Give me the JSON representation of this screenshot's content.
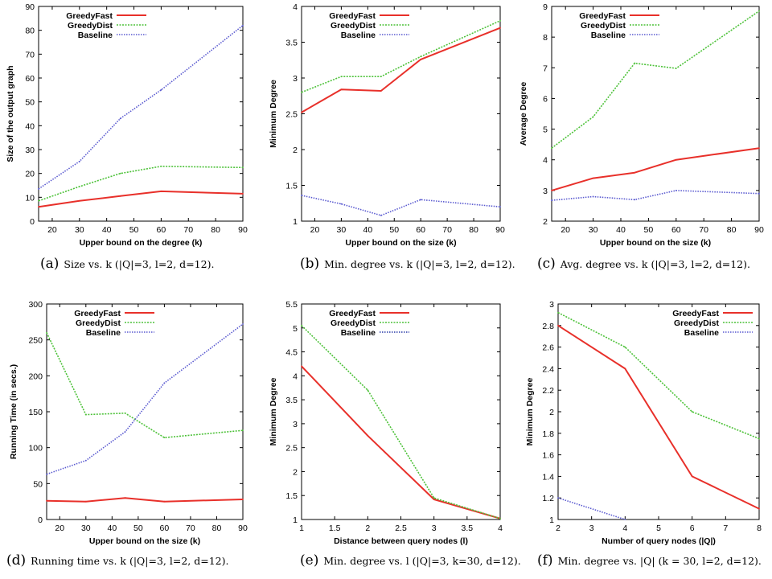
{
  "chart_data": [
    {
      "type": "line",
      "ylabel": "Size of the output graph",
      "xlabel": "Upper bound on the degree (k)",
      "xlim": [
        15,
        90
      ],
      "ylim": [
        0,
        90
      ],
      "xticks": [
        20,
        30,
        40,
        50,
        60,
        70,
        80,
        90
      ],
      "yticks": [
        0,
        10,
        20,
        30,
        40,
        50,
        60,
        70,
        80,
        90
      ],
      "legend": "top-left",
      "caption_label": "(a)",
      "caption": "Size vs. k (|Q|=3, l=2, d=12).",
      "series": [
        {
          "name": "GreedyFast",
          "color": "#e8302a",
          "x": [
            15,
            30,
            45,
            60,
            90
          ],
          "y": [
            6,
            8.5,
            10.5,
            12.5,
            11.5
          ]
        },
        {
          "name": "GreedyDist",
          "color": "#4ec23a",
          "x": [
            15,
            30,
            45,
            60,
            90
          ],
          "y": [
            8.5,
            14.5,
            20,
            23,
            22.5
          ]
        },
        {
          "name": "Baseline",
          "color": "#5a5ad0",
          "x": [
            15,
            30,
            45,
            60,
            90
          ],
          "y": [
            13.5,
            25,
            43,
            55,
            82
          ]
        }
      ]
    },
    {
      "type": "line",
      "ylabel": "Minimum Degree",
      "xlabel": "Upper bound on the size (k)",
      "xlim": [
        15,
        90
      ],
      "ylim": [
        1,
        4
      ],
      "xticks": [
        20,
        30,
        40,
        50,
        60,
        70,
        80,
        90
      ],
      "yticks": [
        1,
        1.5,
        2,
        2.5,
        3,
        3.5,
        4
      ],
      "legend": "top-left",
      "caption_label": "(b)",
      "caption": "Min. degree vs. k (|Q|=3, l=2, d=12).",
      "series": [
        {
          "name": "GreedyFast",
          "color": "#e8302a",
          "x": [
            15,
            30,
            45,
            60,
            90
          ],
          "y": [
            2.52,
            2.84,
            2.82,
            3.26,
            3.7
          ]
        },
        {
          "name": "GreedyDist",
          "color": "#4ec23a",
          "x": [
            15,
            30,
            45,
            60,
            90
          ],
          "y": [
            2.8,
            3.02,
            3.02,
            3.3,
            3.8
          ]
        },
        {
          "name": "Baseline",
          "color": "#5a5ad0",
          "x": [
            15,
            30,
            45,
            60,
            90
          ],
          "y": [
            1.36,
            1.24,
            1.08,
            1.3,
            1.2
          ]
        }
      ]
    },
    {
      "type": "line",
      "ylabel": "Average Degree",
      "xlabel": "Upper bound on the size (k)",
      "xlim": [
        15,
        90
      ],
      "ylim": [
        2,
        9
      ],
      "xticks": [
        20,
        30,
        40,
        50,
        60,
        70,
        80,
        90
      ],
      "yticks": [
        2,
        3,
        4,
        5,
        6,
        7,
        8,
        9
      ],
      "legend": "top-left",
      "caption_label": "(c)",
      "caption": "Avg. degree vs. k (|Q|=3, l=2, d=12).",
      "series": [
        {
          "name": "GreedyFast",
          "color": "#e8302a",
          "x": [
            15,
            30,
            45,
            60,
            90
          ],
          "y": [
            3.0,
            3.4,
            3.58,
            4.0,
            4.38
          ]
        },
        {
          "name": "GreedyDist",
          "color": "#4ec23a",
          "x": [
            15,
            30,
            45,
            60,
            90
          ],
          "y": [
            4.38,
            5.4,
            7.15,
            6.98,
            8.85
          ]
        },
        {
          "name": "Baseline",
          "color": "#5a5ad0",
          "x": [
            15,
            30,
            45,
            60,
            90
          ],
          "y": [
            2.68,
            2.8,
            2.7,
            3.0,
            2.9
          ]
        }
      ]
    },
    {
      "type": "line",
      "ylabel": "Running Time (in secs.)",
      "xlabel": "Upper bound on the size (k)",
      "xlim": [
        15,
        90
      ],
      "ylim": [
        0,
        300
      ],
      "xticks": [
        20,
        30,
        40,
        50,
        60,
        70,
        80,
        90
      ],
      "yticks": [
        0,
        50,
        100,
        150,
        200,
        250,
        300
      ],
      "legend": "top-left",
      "caption_label": "(d)",
      "caption": "Running time vs. k (|Q|=3, l=2, d=12).",
      "series": [
        {
          "name": "GreedyFast",
          "color": "#e8302a",
          "x": [
            15,
            30,
            45,
            60,
            90
          ],
          "y": [
            26,
            25,
            30,
            25,
            28
          ]
        },
        {
          "name": "GreedyDist",
          "color": "#4ec23a",
          "x": [
            15,
            30,
            45,
            60,
            90
          ],
          "y": [
            260,
            146,
            148,
            114,
            124
          ]
        },
        {
          "name": "Baseline",
          "color": "#5a5ad0",
          "x": [
            15,
            30,
            45,
            60,
            90
          ],
          "y": [
            63,
            82,
            122,
            190,
            272
          ]
        }
      ]
    },
    {
      "type": "line",
      "ylabel": "Minimum Degree",
      "xlabel": "Distance between query nodes (l)",
      "xlim": [
        1,
        4
      ],
      "ylim": [
        1,
        5.5
      ],
      "xticks": [
        1,
        1.5,
        2,
        2.5,
        3,
        3.5,
        4
      ],
      "yticks": [
        1,
        1.5,
        2,
        2.5,
        3,
        3.5,
        4,
        4.5,
        5,
        5.5
      ],
      "legend": "top-left",
      "caption_label": "(e)",
      "caption": "Min. degree vs. l (|Q|=3, k=30, d=12).",
      "series": [
        {
          "name": "GreedyFast",
          "color": "#e8302a",
          "x": [
            1,
            2,
            3,
            4
          ],
          "y": [
            4.2,
            2.75,
            1.42,
            1.02
          ]
        },
        {
          "name": "GreedyDist",
          "color": "#4ec23a",
          "x": [
            1,
            2,
            3,
            4
          ],
          "y": [
            5.05,
            3.7,
            1.45,
            1.02
          ]
        },
        {
          "name": "Baseline",
          "color": "#2a3ca8",
          "x": [],
          "y": []
        }
      ]
    },
    {
      "type": "line",
      "ylabel": "Minimum Degree",
      "xlabel": "Number of query nodes (|Q|)",
      "xlim": [
        2,
        8
      ],
      "ylim": [
        1,
        3
      ],
      "xticks": [
        2,
        3,
        4,
        5,
        6,
        7,
        8
      ],
      "yticks": [
        1,
        1.2,
        1.4,
        1.6,
        1.8,
        2,
        2.2,
        2.4,
        2.6,
        2.8,
        3
      ],
      "legend": "top-right",
      "caption_label": "(f)",
      "caption": "Min. degree vs. |Q| (k = 30, l=2, d=12).",
      "series": [
        {
          "name": "GreedyFast",
          "color": "#e8302a",
          "x": [
            2,
            4,
            6,
            8
          ],
          "y": [
            2.8,
            2.4,
            1.4,
            1.1
          ]
        },
        {
          "name": "GreedyDist",
          "color": "#4ec23a",
          "x": [
            2,
            4,
            6,
            8
          ],
          "y": [
            2.92,
            2.6,
            2.0,
            1.75
          ]
        },
        {
          "name": "Baseline",
          "color": "#5a5ad0",
          "x": [
            2,
            4
          ],
          "y": [
            1.2,
            1.0
          ]
        }
      ]
    }
  ]
}
